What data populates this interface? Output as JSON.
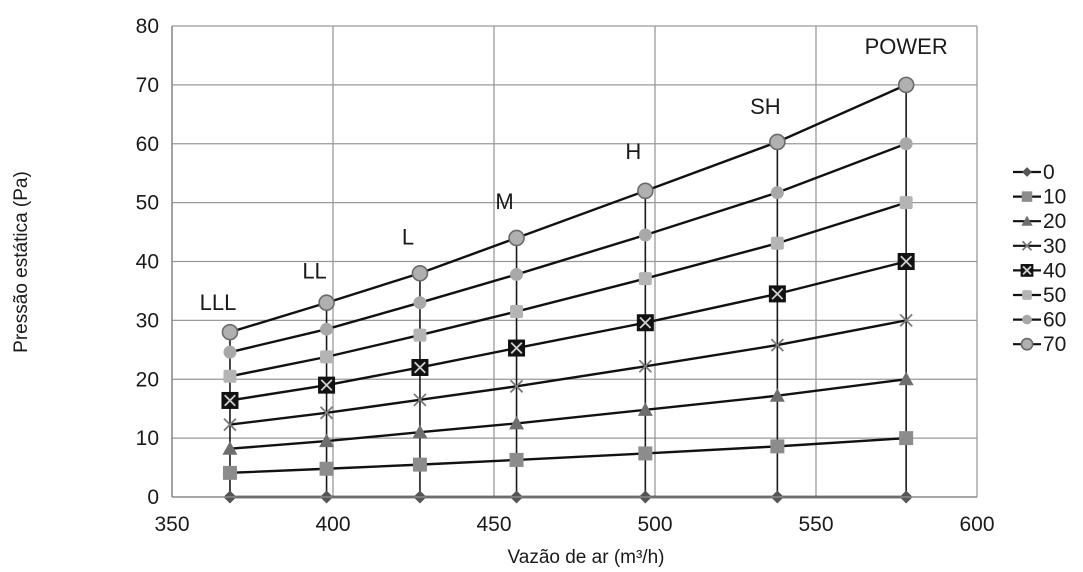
{
  "chart_data": {
    "type": "line",
    "title": "",
    "xlabel": "Vazão de ar (m³/h)",
    "ylabel": "Pressão estática (Pa)",
    "xlim": [
      350,
      600
    ],
    "ylim": [
      0,
      80
    ],
    "xticks": [
      "350",
      "400",
      "450",
      "500",
      "550",
      "600"
    ],
    "yticks": [
      "0",
      "10",
      "20",
      "30",
      "40",
      "50",
      "60",
      "70",
      "80"
    ],
    "grid": true,
    "legend_position": "right",
    "x": [
      368,
      398,
      427,
      457,
      497,
      538,
      578
    ],
    "speed_labels": [
      "LLL",
      "LL",
      "L",
      "M",
      "H",
      "SH",
      "POWER"
    ],
    "series": [
      {
        "name": "0",
        "marker": "diamond",
        "values": [
          0,
          0,
          0,
          0,
          0,
          0,
          0
        ]
      },
      {
        "name": "10",
        "marker": "square",
        "values": [
          4.1,
          4.8,
          5.5,
          6.3,
          7.4,
          8.6,
          10
        ]
      },
      {
        "name": "20",
        "marker": "triangle",
        "values": [
          8.2,
          9.5,
          11,
          12.5,
          14.8,
          17.2,
          20
        ]
      },
      {
        "name": "30",
        "marker": "x",
        "values": [
          12.3,
          14.3,
          16.5,
          18.8,
          22.2,
          25.8,
          30
        ]
      },
      {
        "name": "40",
        "marker": "boxed-x",
        "values": [
          16.4,
          19,
          22,
          25.3,
          29.6,
          34.5,
          40
        ]
      },
      {
        "name": "50",
        "marker": "square-light",
        "values": [
          20.5,
          23.8,
          27.5,
          31.5,
          37.1,
          43.1,
          50
        ]
      },
      {
        "name": "60",
        "marker": "circle-light",
        "values": [
          24.6,
          28.5,
          33,
          37.8,
          44.5,
          51.7,
          60
        ]
      },
      {
        "name": "70",
        "marker": "circle",
        "values": [
          28,
          33,
          38,
          44,
          52,
          60.3,
          70
        ]
      }
    ]
  }
}
